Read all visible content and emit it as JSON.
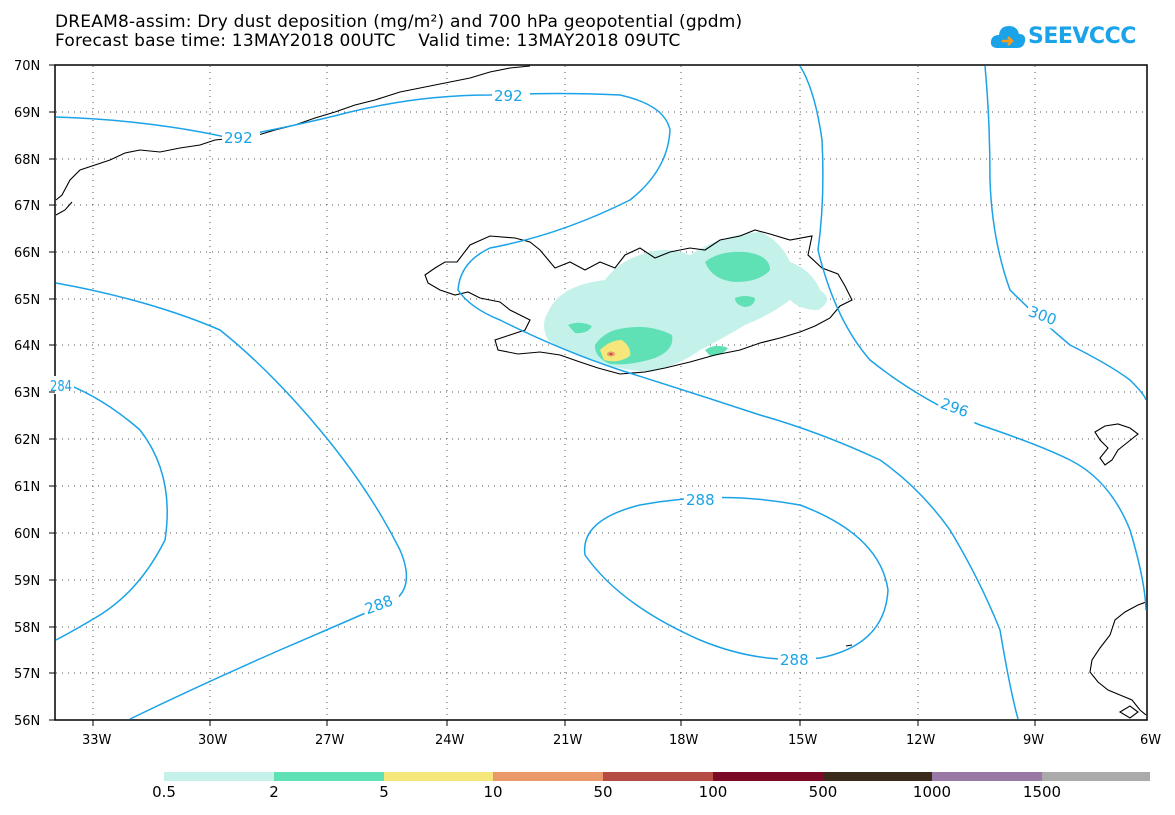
{
  "title": {
    "line1": "DREAM8-assim: Dry dust deposition (mg/m²) and 700 hPa geopotential (gpdm)",
    "line2": "Forecast base time: 13MAY2018 00UTC    Valid time: 13MAY2018 09UTC"
  },
  "logo": {
    "text": "SEEVCCC",
    "icon": "cloud-icon",
    "color": "#1aa3e8"
  },
  "map": {
    "lon_range": [
      -34.5,
      -6
    ],
    "lat_range": [
      56,
      70
    ],
    "lat_ticks": [
      "70N",
      "69N",
      "68N",
      "67N",
      "66N",
      "65N",
      "64N",
      "63N",
      "62N",
      "61N",
      "60N",
      "59N",
      "58N",
      "57N",
      "56N"
    ],
    "lon_ticks": [
      "33W",
      "30W",
      "27W",
      "24W",
      "21W",
      "18W",
      "15W",
      "12W",
      "9W",
      "6W"
    ],
    "contour_labels": [
      "292",
      "292",
      "300",
      "296",
      "288",
      "288",
      "288",
      "284"
    ],
    "contour_color": "#1aa3e8"
  },
  "legend": {
    "colors": [
      "#c4f2ea",
      "#5fe0b5",
      "#f5e77a",
      "#ea9a6a",
      "#b44c44",
      "#7a0a25",
      "#3a2a1a",
      "#9a78a5",
      "#aaaaaa"
    ],
    "labels": [
      "0.5",
      "2",
      "5",
      "10",
      "50",
      "100",
      "500",
      "1000",
      "1500"
    ]
  }
}
